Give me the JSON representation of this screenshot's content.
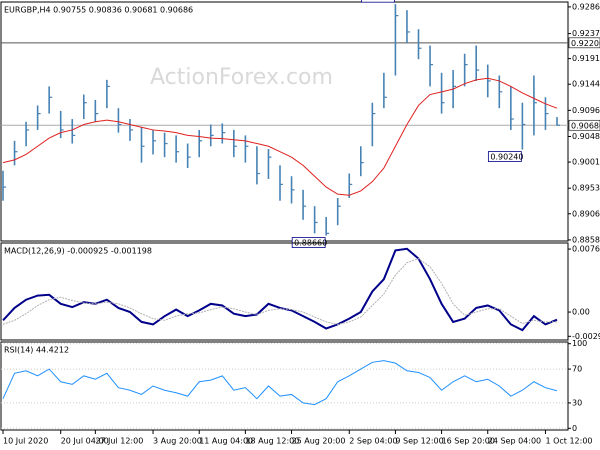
{
  "chart_data": [
    {
      "type": "ohlc",
      "title": "EURGBP,H4 0.90755 0.90836 0.90681 0.90686",
      "watermark": "ActionForex.com",
      "color": "#4682b4",
      "categories": [
        "10 Jul 2020",
        null,
        null,
        null,
        null,
        "20 Jul 04:00",
        null,
        null,
        "27 Jul 12:00",
        null,
        null,
        null,
        null,
        "3 Aug 20:00",
        null,
        null,
        null,
        "11 Aug 04:00",
        null,
        null,
        null,
        "18 Aug 12:00",
        null,
        null,
        null,
        "25 Aug 20:00",
        null,
        null,
        null,
        null,
        "2 Sep 04:00",
        null,
        null,
        null,
        "9 Sep 12:00",
        null,
        null,
        null,
        "16 Sep 20:00",
        null,
        null,
        null,
        "24 Sep 04:00",
        null,
        null,
        null,
        null,
        "1 Oct 12:00",
        null
      ],
      "high": [
        0.8985,
        0.904,
        0.9075,
        0.9105,
        0.914,
        0.9095,
        0.908,
        0.9125,
        0.9115,
        0.9152,
        0.91,
        0.908,
        0.9065,
        0.906,
        0.9055,
        0.905,
        0.9035,
        0.906,
        0.907,
        0.9072,
        0.906,
        0.905,
        0.903,
        0.9025,
        0.8995,
        0.8975,
        0.895,
        0.892,
        0.89,
        0.8935,
        0.898,
        0.903,
        0.911,
        0.9165,
        0.9291,
        0.928,
        0.9245,
        0.9215,
        0.9165,
        0.917,
        0.92,
        0.9215,
        0.918,
        0.916,
        0.914,
        0.911,
        0.916,
        0.912,
        0.90836
      ],
      "low": [
        0.893,
        0.8995,
        0.903,
        0.906,
        0.909,
        0.9045,
        0.9035,
        0.908,
        0.9075,
        0.91,
        0.9055,
        0.904,
        0.9,
        0.9015,
        0.901,
        0.9,
        0.899,
        0.901,
        0.903,
        0.9035,
        0.901,
        0.9,
        0.896,
        0.897,
        0.893,
        0.8925,
        0.8895,
        0.887,
        0.8866,
        0.8885,
        0.8935,
        0.8975,
        0.903,
        0.91,
        0.916,
        0.922,
        0.919,
        0.914,
        0.909,
        0.91,
        0.914,
        0.915,
        0.912,
        0.91,
        0.906,
        0.9024,
        0.905,
        0.906,
        0.90681
      ],
      "close": [
        0.8955,
        0.902,
        0.906,
        0.909,
        0.912,
        0.906,
        0.905,
        0.911,
        0.909,
        0.914,
        0.907,
        0.906,
        0.903,
        0.904,
        0.9035,
        0.902,
        0.901,
        0.904,
        0.905,
        0.9055,
        0.903,
        0.903,
        0.898,
        0.901,
        0.896,
        0.895,
        0.892,
        0.889,
        0.887,
        0.892,
        0.896,
        0.9,
        0.909,
        0.912,
        0.927,
        0.924,
        0.921,
        0.918,
        0.911,
        0.914,
        0.918,
        0.917,
        0.915,
        0.913,
        0.908,
        0.907,
        0.911,
        0.909,
        0.90686
      ],
      "moving_average": {
        "color": "#e02020",
        "values": [
          0.9,
          0.9005,
          0.9015,
          0.903,
          0.9045,
          0.9055,
          0.906,
          0.907,
          0.9075,
          0.9078,
          0.9075,
          0.907,
          0.9065,
          0.906,
          0.9058,
          0.9055,
          0.905,
          0.9048,
          0.9045,
          0.9044,
          0.9042,
          0.904,
          0.9035,
          0.903,
          0.902,
          0.901,
          0.8995,
          0.8975,
          0.8955,
          0.8942,
          0.894,
          0.8948,
          0.8965,
          0.899,
          0.903,
          0.907,
          0.9105,
          0.9125,
          0.913,
          0.9135,
          0.9145,
          0.9152,
          0.9155,
          0.915,
          0.914,
          0.9128,
          0.9118,
          0.9108,
          0.91
        ]
      },
      "hlines": [
        {
          "value": 0.922,
          "label": "0.92200"
        },
        {
          "value": 0.90686,
          "label": "0.90686"
        }
      ],
      "annotations": [
        {
          "value": 0.9291,
          "label": "0.92910"
        },
        {
          "value": 0.9024,
          "label": "0.90240"
        },
        {
          "value": 0.8866,
          "label": "0.88660"
        }
      ],
      "ylim": [
        0.8856,
        0.9295
      ],
      "yticks": [
        {
          "value": 0.9286,
          "label": "0.92860"
        },
        {
          "value": 0.9237,
          "label": "0.92370"
        },
        {
          "value": 0.9191,
          "label": "0.91910"
        },
        {
          "value": 0.9144,
          "label": "0.91440"
        },
        {
          "value": 0.9096,
          "label": "0.90960"
        },
        {
          "value": 0.9048,
          "label": "0.90480"
        },
        {
          "value": 0.9001,
          "label": "0.90010"
        },
        {
          "value": 0.8953,
          "label": "0.89530"
        },
        {
          "value": 0.8906,
          "label": "0.89060"
        },
        {
          "value": 0.8858,
          "label": "0.88580"
        }
      ]
    },
    {
      "type": "line",
      "title": "MACD(12,26,9) -0.000925 -0.001198",
      "series": [
        {
          "color": "#00008b",
          "width": 2,
          "values": [
            -0.001,
            0.0005,
            0.0015,
            0.002,
            0.0021,
            0.001,
            0.0006,
            0.0012,
            0.001,
            0.0015,
            0.0005,
            0.0,
            -0.0012,
            -0.0015,
            -0.0005,
            0.0003,
            -0.0005,
            0.0002,
            0.001,
            0.0008,
            -0.0002,
            -0.0005,
            -0.0003,
            0.001,
            0.0005,
            0.0002,
            -0.0005,
            -0.0012,
            -0.002,
            -0.0015,
            -0.0008,
            0.0,
            0.0025,
            0.004,
            0.0075,
            0.0077,
            0.0065,
            0.004,
            0.001,
            -0.0012,
            -0.0008,
            0.0005,
            0.0008,
            0.0002,
            -0.0015,
            -0.0022,
            -0.0005,
            -0.0015,
            -0.000925
          ]
        },
        {
          "color": "#b0b0b0",
          "width": 1,
          "values": [
            -0.0015,
            -0.001,
            -0.0002,
            0.0008,
            0.0015,
            0.0018,
            0.0014,
            0.0011,
            0.001,
            0.0012,
            0.001,
            0.0005,
            -0.0002,
            -0.0008,
            -0.001,
            -0.0005,
            -0.0002,
            -0.0001,
            0.0003,
            0.0006,
            0.0004,
            0.0,
            -0.0003,
            0.0002,
            0.0004,
            0.0003,
            0.0,
            -0.0006,
            -0.0012,
            -0.0015,
            -0.0012,
            -0.0006,
            0.0008,
            0.0022,
            0.0045,
            0.006,
            0.0065,
            0.0055,
            0.0035,
            0.001,
            -0.0004,
            0.0,
            0.0004,
            0.0004,
            -0.0005,
            -0.0014,
            -0.001,
            -0.0012,
            -0.001198
          ]
        }
      ],
      "ylim": [
        -0.0034,
        0.0084
      ],
      "yticks": [
        0.007663,
        {
          "value": 0,
          "label": "0.00"
        },
        -0.002952
      ]
    },
    {
      "type": "line",
      "title": "RSI(14) 44.4212",
      "series": [
        {
          "color": "#1e90ff",
          "width": 1,
          "values": [
            35,
            65,
            68,
            62,
            70,
            55,
            52,
            62,
            58,
            65,
            48,
            45,
            40,
            50,
            45,
            42,
            38,
            55,
            57,
            62,
            45,
            48,
            35,
            50,
            38,
            40,
            30,
            28,
            35,
            55,
            62,
            70,
            78,
            80,
            77,
            68,
            66,
            60,
            45,
            55,
            62,
            55,
            58,
            50,
            38,
            45,
            55,
            48,
            44.4212
          ]
        }
      ],
      "ylim": [
        -2,
        102
      ],
      "yticks": [
        100,
        70,
        30,
        0
      ]
    }
  ]
}
